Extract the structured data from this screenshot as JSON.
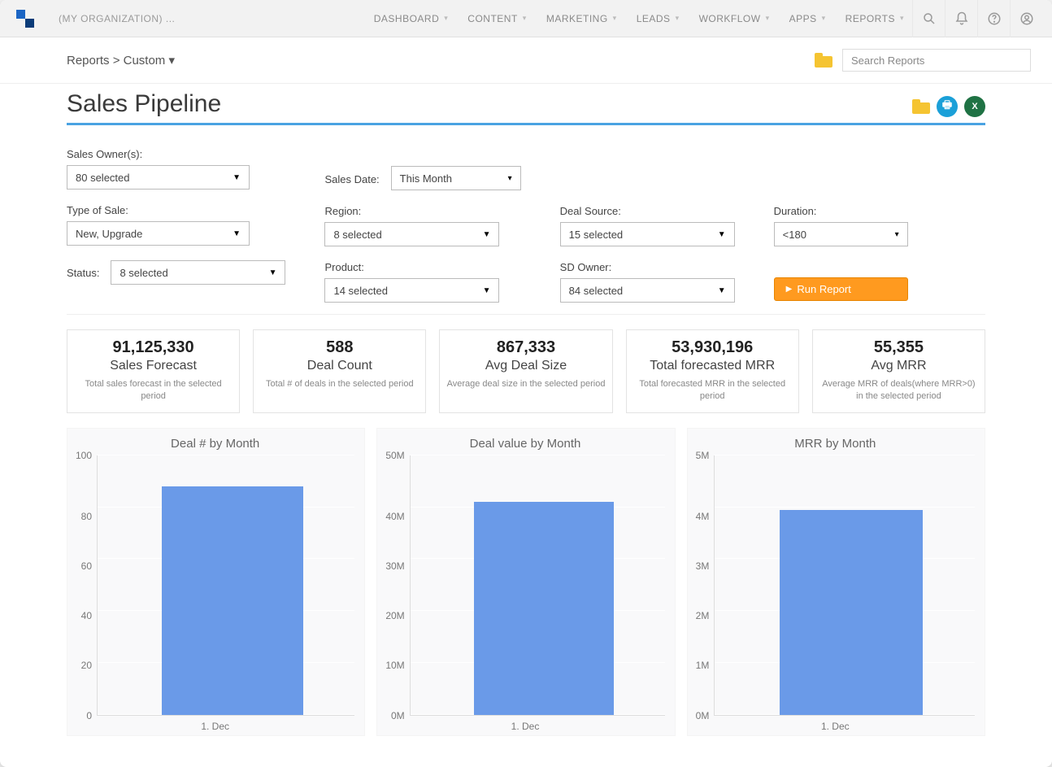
{
  "topbar": {
    "org": "(MY ORGANIZATION) ...",
    "menu": [
      "DASHBOARD",
      "CONTENT",
      "MARKETING",
      "LEADS",
      "WORKFLOW",
      "APPS",
      "REPORTS"
    ]
  },
  "subhead": {
    "breadcrumb": "Reports > Custom ▾",
    "search_placeholder": "Search Reports"
  },
  "page": {
    "title": "Sales Pipeline",
    "underline_color": "#4aa3e2"
  },
  "filters": {
    "sales_owners": {
      "label": "Sales Owner(s):",
      "value": "80 selected"
    },
    "sales_date": {
      "label": "Sales Date:",
      "value": "This Month"
    },
    "type_of_sale": {
      "label": "Type of Sale:",
      "value": "New, Upgrade"
    },
    "region": {
      "label": "Region:",
      "value": "8 selected"
    },
    "deal_source": {
      "label": "Deal Source:",
      "value": "15 selected"
    },
    "duration": {
      "label": "Duration:",
      "value": "<180"
    },
    "status": {
      "label": "Status:",
      "value": "8 selected"
    },
    "product": {
      "label": "Product:",
      "value": "14 selected"
    },
    "sd_owner": {
      "label": "SD Owner:",
      "value": "84 selected"
    },
    "run_button": "Run Report"
  },
  "kpis": [
    {
      "value": "91,125,330",
      "label": "Sales Forecast",
      "desc": "Total sales forecast in the selected period"
    },
    {
      "value": "588",
      "label": "Deal Count",
      "desc": "Total # of deals in the selected period"
    },
    {
      "value": "867,333",
      "label": "Avg Deal Size",
      "desc": "Average deal size in the selected period"
    },
    {
      "value": "53,930,196",
      "label": "Total forecasted MRR",
      "desc": "Total forecasted MRR in the selected period"
    },
    {
      "value": "55,355",
      "label": "Avg MRR",
      "desc": "Average MRR of deals(where MRR>0) in the selected period"
    }
  ],
  "charts": [
    {
      "title": "Deal # by Month",
      "type": "bar",
      "categories": [
        "1. Dec"
      ],
      "values": [
        88
      ],
      "ylim": [
        0,
        100
      ],
      "yticks": [
        "100",
        "80",
        "60",
        "40",
        "20",
        "0"
      ],
      "bar_color": "#6a9ae8",
      "grid_color": "#ffffff",
      "background": "#f9f9fa",
      "bar_width_pct": 55,
      "bar_left_pct": 25,
      "title_fontsize": 15,
      "tick_fontsize": 12
    },
    {
      "title": "Deal value by Month",
      "type": "bar",
      "categories": [
        "1. Dec"
      ],
      "values": [
        41000000
      ],
      "ylim": [
        0,
        50000000
      ],
      "yticks": [
        "50M",
        "40M",
        "30M",
        "20M",
        "10M",
        "0M"
      ],
      "bar_color": "#6a9ae8",
      "grid_color": "#ffffff",
      "background": "#f9f9fa",
      "bar_width_pct": 55,
      "bar_left_pct": 25,
      "title_fontsize": 15,
      "tick_fontsize": 12
    },
    {
      "title": "MRR by Month",
      "type": "bar",
      "categories": [
        "1. Dec"
      ],
      "values": [
        3950000
      ],
      "ylim": [
        0,
        5000000
      ],
      "yticks": [
        "5M",
        "4M",
        "3M",
        "2M",
        "1M",
        "0M"
      ],
      "bar_color": "#6a9ae8",
      "grid_color": "#ffffff",
      "background": "#f9f9fa",
      "bar_width_pct": 55,
      "bar_left_pct": 25,
      "title_fontsize": 15,
      "tick_fontsize": 12
    }
  ]
}
